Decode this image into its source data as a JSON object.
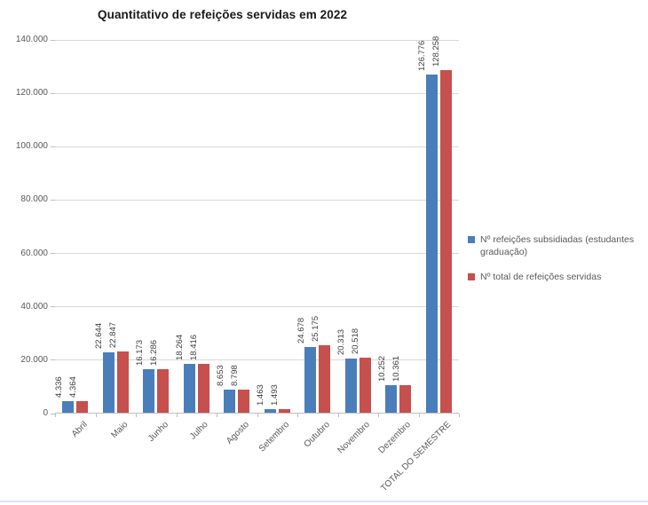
{
  "title": "Quantitativo de refeições servidas em 2022",
  "chart_data": {
    "type": "bar",
    "title": "Quantitativo de refeições servidas em 2022",
    "categories": [
      "Abril",
      "Maio",
      "Junho",
      "Julho",
      "Agosto",
      "Setembro",
      "Outubro",
      "Novembro",
      "Dezembro",
      "TOTAL DO SEMESTRE"
    ],
    "series": [
      {
        "name": "Nº refeições subsidiadas (estudantes graduação)",
        "color": "#4a7ebb",
        "values": [
          4336,
          22644,
          16173,
          18264,
          8653,
          1463,
          24678,
          20313,
          10252,
          126776
        ],
        "labels": [
          "4.336",
          "22.644",
          "16.173",
          "18.264",
          "8.653",
          "1.463",
          "24.678",
          "20.313",
          "10.252",
          "126.776"
        ]
      },
      {
        "name": "Nº total de refeições servidas",
        "color": "#c5504e",
        "values": [
          4364,
          22847,
          16286,
          18416,
          8798,
          1493,
          25175,
          20518,
          10361,
          128258
        ],
        "labels": [
          "4.364",
          "22.847",
          "16.286",
          "18.416",
          "8.798",
          "1.493",
          "25.175",
          "20.518",
          "10.361",
          "128.258"
        ]
      }
    ],
    "xlabel": "",
    "ylabel": "",
    "ylim": [
      0,
      140000
    ],
    "ytick_step": 20000,
    "ytick_labels": [
      "0",
      "20.000",
      "40.000",
      "60.000",
      "80.000",
      "100.000",
      "120.000",
      "140.000"
    ],
    "grid": true,
    "data_labels_rotation": 90,
    "xlabel_rotation": 45,
    "legend_position": "right"
  },
  "colors": {
    "series_subsidized": "#4a7ebb",
    "series_total": "#c5504e",
    "gridline": "#d9d9d9",
    "axis": "#bfbfbf",
    "axis_text": "#595959",
    "data_label_text": "#404040",
    "bottom_rule": "#d9e1f2"
  }
}
